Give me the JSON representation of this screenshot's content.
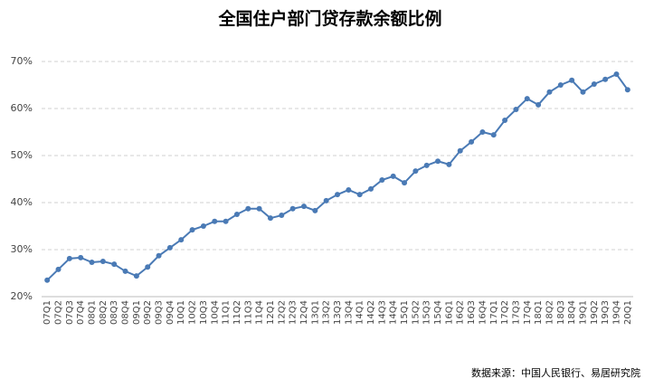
{
  "chart_data": {
    "type": "line",
    "title": "全国住户部门贷存款余额比例",
    "source": "数据来源：中国人民银行、易居研究院",
    "categories": [
      "07Q1",
      "07Q2",
      "07Q3",
      "07Q4",
      "08Q1",
      "08Q2",
      "08Q3",
      "08Q4",
      "09Q1",
      "09Q2",
      "09Q3",
      "09Q4",
      "10Q1",
      "10Q2",
      "10Q3",
      "10Q4",
      "11Q1",
      "11Q2",
      "11Q3",
      "11Q4",
      "12Q1",
      "12Q2",
      "12Q3",
      "12Q4",
      "13Q1",
      "13Q2",
      "13Q3",
      "13Q4",
      "14Q1",
      "14Q2",
      "14Q3",
      "14Q4",
      "15Q1",
      "15Q2",
      "15Q3",
      "15Q4",
      "16Q1",
      "16Q2",
      "16Q3",
      "16Q4",
      "17Q1",
      "17Q2",
      "17Q3",
      "17Q4",
      "18Q1",
      "18Q2",
      "18Q3",
      "18Q4",
      "19Q1",
      "19Q2",
      "19Q3",
      "19Q4",
      "20Q1"
    ],
    "series": [
      {
        "color": "#4a7ab5",
        "values": [
          23.5,
          25.8,
          28.1,
          28.3,
          27.3,
          27.5,
          26.9,
          25.4,
          24.4,
          26.3,
          28.7,
          30.4,
          32.1,
          34.2,
          35.0,
          36.0,
          36.0,
          37.5,
          38.7,
          38.7,
          36.7,
          37.3,
          38.7,
          39.2,
          38.3,
          40.4,
          41.7,
          42.7,
          41.7,
          42.9,
          44.8,
          45.6,
          44.2,
          46.7,
          47.9,
          48.8,
          48.1,
          51.0,
          52.9,
          55.0,
          54.4,
          57.5,
          59.8,
          62.1,
          60.8,
          63.5,
          65.0,
          66.0,
          63.5,
          65.2,
          66.2,
          67.3,
          64.0
        ]
      }
    ],
    "ylim": [
      20,
      70
    ],
    "yticks": [
      {
        "value": 20,
        "label": "20%"
      },
      {
        "value": 30,
        "label": "30%"
      },
      {
        "value": 40,
        "label": "40%"
      },
      {
        "value": 50,
        "label": "50%"
      },
      {
        "value": 60,
        "label": "60%"
      },
      {
        "value": 70,
        "label": "70%"
      }
    ],
    "grid": true
  }
}
